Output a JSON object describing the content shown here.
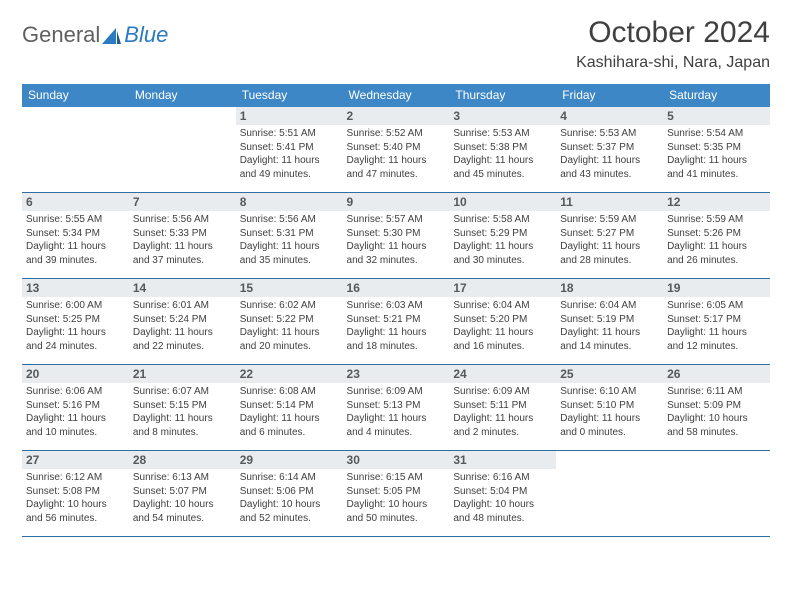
{
  "brand": {
    "part1": "General",
    "part2": "Blue"
  },
  "title": "October 2024",
  "location": "Kashihara-shi, Nara, Japan",
  "colors": {
    "header_bg": "#3d87c7",
    "header_text": "#ffffff",
    "daynum_bg": "#e9ecef",
    "row_border": "#2f6ea4",
    "brand_gray": "#606060",
    "brand_blue": "#2a7bbf",
    "text": "#404040"
  },
  "weekdays": [
    "Sunday",
    "Monday",
    "Tuesday",
    "Wednesday",
    "Thursday",
    "Friday",
    "Saturday"
  ],
  "first_weekday_index": 2,
  "days": [
    {
      "n": 1,
      "sunrise": "5:51 AM",
      "sunset": "5:41 PM",
      "daylight": "11 hours and 49 minutes."
    },
    {
      "n": 2,
      "sunrise": "5:52 AM",
      "sunset": "5:40 PM",
      "daylight": "11 hours and 47 minutes."
    },
    {
      "n": 3,
      "sunrise": "5:53 AM",
      "sunset": "5:38 PM",
      "daylight": "11 hours and 45 minutes."
    },
    {
      "n": 4,
      "sunrise": "5:53 AM",
      "sunset": "5:37 PM",
      "daylight": "11 hours and 43 minutes."
    },
    {
      "n": 5,
      "sunrise": "5:54 AM",
      "sunset": "5:35 PM",
      "daylight": "11 hours and 41 minutes."
    },
    {
      "n": 6,
      "sunrise": "5:55 AM",
      "sunset": "5:34 PM",
      "daylight": "11 hours and 39 minutes."
    },
    {
      "n": 7,
      "sunrise": "5:56 AM",
      "sunset": "5:33 PM",
      "daylight": "11 hours and 37 minutes."
    },
    {
      "n": 8,
      "sunrise": "5:56 AM",
      "sunset": "5:31 PM",
      "daylight": "11 hours and 35 minutes."
    },
    {
      "n": 9,
      "sunrise": "5:57 AM",
      "sunset": "5:30 PM",
      "daylight": "11 hours and 32 minutes."
    },
    {
      "n": 10,
      "sunrise": "5:58 AM",
      "sunset": "5:29 PM",
      "daylight": "11 hours and 30 minutes."
    },
    {
      "n": 11,
      "sunrise": "5:59 AM",
      "sunset": "5:27 PM",
      "daylight": "11 hours and 28 minutes."
    },
    {
      "n": 12,
      "sunrise": "5:59 AM",
      "sunset": "5:26 PM",
      "daylight": "11 hours and 26 minutes."
    },
    {
      "n": 13,
      "sunrise": "6:00 AM",
      "sunset": "5:25 PM",
      "daylight": "11 hours and 24 minutes."
    },
    {
      "n": 14,
      "sunrise": "6:01 AM",
      "sunset": "5:24 PM",
      "daylight": "11 hours and 22 minutes."
    },
    {
      "n": 15,
      "sunrise": "6:02 AM",
      "sunset": "5:22 PM",
      "daylight": "11 hours and 20 minutes."
    },
    {
      "n": 16,
      "sunrise": "6:03 AM",
      "sunset": "5:21 PM",
      "daylight": "11 hours and 18 minutes."
    },
    {
      "n": 17,
      "sunrise": "6:04 AM",
      "sunset": "5:20 PM",
      "daylight": "11 hours and 16 minutes."
    },
    {
      "n": 18,
      "sunrise": "6:04 AM",
      "sunset": "5:19 PM",
      "daylight": "11 hours and 14 minutes."
    },
    {
      "n": 19,
      "sunrise": "6:05 AM",
      "sunset": "5:17 PM",
      "daylight": "11 hours and 12 minutes."
    },
    {
      "n": 20,
      "sunrise": "6:06 AM",
      "sunset": "5:16 PM",
      "daylight": "11 hours and 10 minutes."
    },
    {
      "n": 21,
      "sunrise": "6:07 AM",
      "sunset": "5:15 PM",
      "daylight": "11 hours and 8 minutes."
    },
    {
      "n": 22,
      "sunrise": "6:08 AM",
      "sunset": "5:14 PM",
      "daylight": "11 hours and 6 minutes."
    },
    {
      "n": 23,
      "sunrise": "6:09 AM",
      "sunset": "5:13 PM",
      "daylight": "11 hours and 4 minutes."
    },
    {
      "n": 24,
      "sunrise": "6:09 AM",
      "sunset": "5:11 PM",
      "daylight": "11 hours and 2 minutes."
    },
    {
      "n": 25,
      "sunrise": "6:10 AM",
      "sunset": "5:10 PM",
      "daylight": "11 hours and 0 minutes."
    },
    {
      "n": 26,
      "sunrise": "6:11 AM",
      "sunset": "5:09 PM",
      "daylight": "10 hours and 58 minutes."
    },
    {
      "n": 27,
      "sunrise": "6:12 AM",
      "sunset": "5:08 PM",
      "daylight": "10 hours and 56 minutes."
    },
    {
      "n": 28,
      "sunrise": "6:13 AM",
      "sunset": "5:07 PM",
      "daylight": "10 hours and 54 minutes."
    },
    {
      "n": 29,
      "sunrise": "6:14 AM",
      "sunset": "5:06 PM",
      "daylight": "10 hours and 52 minutes."
    },
    {
      "n": 30,
      "sunrise": "6:15 AM",
      "sunset": "5:05 PM",
      "daylight": "10 hours and 50 minutes."
    },
    {
      "n": 31,
      "sunrise": "6:16 AM",
      "sunset": "5:04 PM",
      "daylight": "10 hours and 48 minutes."
    }
  ],
  "labels": {
    "sunrise": "Sunrise:",
    "sunset": "Sunset:",
    "daylight": "Daylight:"
  }
}
